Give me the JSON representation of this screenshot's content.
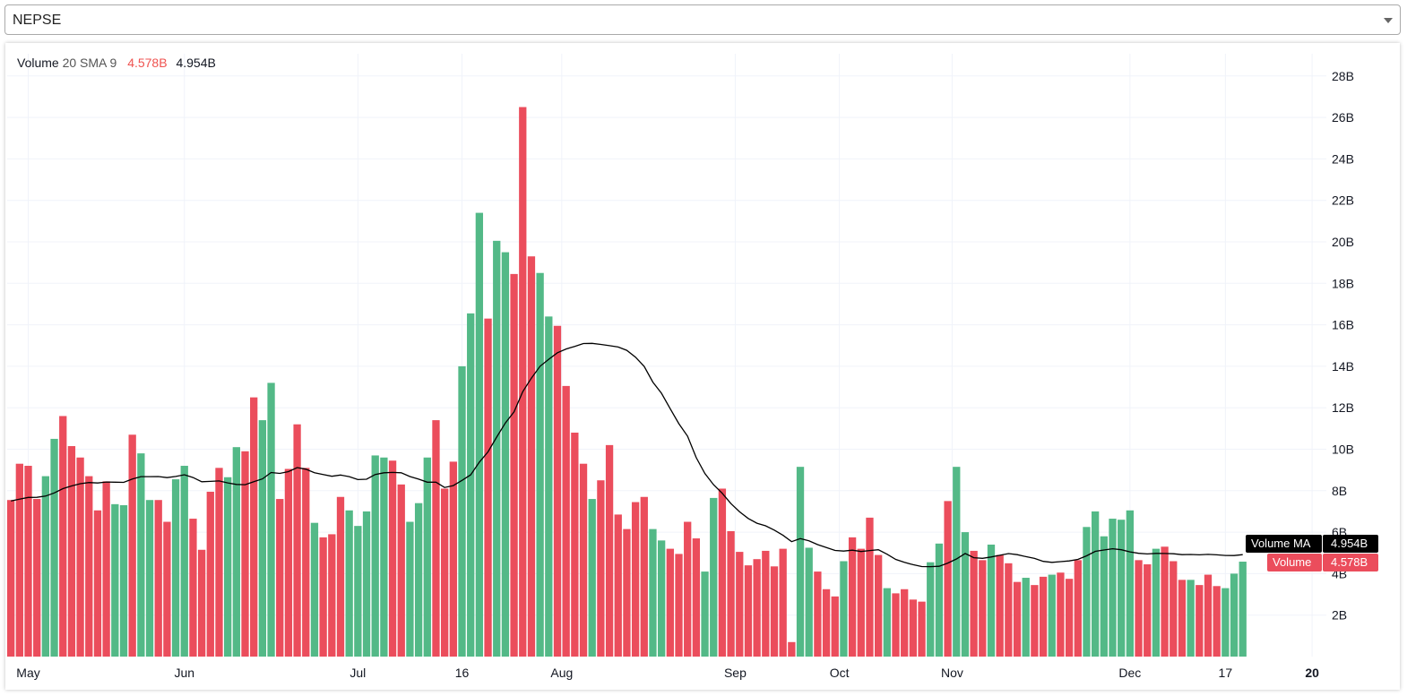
{
  "symbol_select": {
    "value": "NEPSE",
    "icon": "chevron-down-icon"
  },
  "legend": {
    "name": "Volume",
    "params": "20 SMA 9",
    "volume_value": "4.578B",
    "ma_value": "4.954B"
  },
  "price_tags": {
    "ma_label": "Volume MA",
    "ma_value": "4.954B",
    "vol_label": "Volume",
    "vol_value": "4.578B"
  },
  "colors": {
    "up": "#53b987",
    "down": "#eb4d5c",
    "ma": "#000000",
    "grid": "#f0f3fa"
  },
  "chart_data": {
    "type": "bar",
    "unit": "B",
    "ylim": [
      0,
      28
    ],
    "y_ticks": [
      "2B",
      "4B",
      "6B",
      "8B",
      "10B",
      "12B",
      "14B",
      "16B",
      "18B",
      "20B",
      "22B",
      "24B",
      "26B",
      "28B"
    ],
    "y_tick_values": [
      2,
      4,
      6,
      8,
      10,
      12,
      14,
      16,
      18,
      20,
      22,
      24,
      26,
      28
    ],
    "x_ticks": [
      {
        "label": "May",
        "index": 2
      },
      {
        "label": "Jun",
        "index": 20
      },
      {
        "label": "Jul",
        "index": 40
      },
      {
        "label": "16",
        "index": 52
      },
      {
        "label": "Aug",
        "index": 63.5
      },
      {
        "label": "Sep",
        "index": 83.5
      },
      {
        "label": "Oct",
        "index": 95.5
      },
      {
        "label": "Nov",
        "index": 108.5
      },
      {
        "label": "Dec",
        "index": 129
      },
      {
        "label": "17",
        "index": 140
      },
      {
        "label": "20",
        "index": 150
      }
    ],
    "grid": true,
    "ma_period": 20,
    "volumes": [
      7.55,
      9.3,
      9.2,
      7.6,
      8.7,
      10.5,
      11.6,
      10.15,
      9.6,
      8.7,
      7.05,
      8.45,
      7.35,
      7.3,
      10.7,
      9.8,
      7.55,
      7.55,
      6.5,
      8.55,
      9.2,
      6.65,
      5.15,
      7.95,
      9.1,
      8.65,
      10.1,
      9.9,
      12.5,
      11.4,
      13.2,
      7.6,
      9.05,
      11.2,
      9.1,
      6.45,
      5.75,
      5.9,
      7.7,
      7.05,
      6.3,
      7.0,
      9.7,
      9.6,
      9.45,
      8.3,
      6.5,
      7.4,
      9.6,
      11.4,
      8.1,
      9.4,
      14.0,
      16.55,
      21.4,
      16.3,
      20.05,
      19.5,
      18.45,
      26.5,
      19.3,
      18.5,
      16.4,
      15.95,
      13.05,
      10.8,
      9.3,
      7.6,
      8.5,
      10.2,
      6.85,
      6.15,
      7.45,
      7.7,
      6.15,
      5.6,
      5.2,
      4.95,
      6.5,
      5.7,
      4.1,
      7.65,
      8.1,
      6.05,
      5.05,
      4.4,
      4.7,
      5.1,
      4.35,
      5.2,
      0.7,
      9.15,
      5.25,
      4.1,
      3.25,
      2.9,
      4.6,
      5.75,
      5.2,
      6.7,
      4.9,
      3.3,
      3.05,
      3.25,
      2.75,
      2.65,
      4.55,
      5.45,
      7.5,
      9.15,
      6.0,
      5.1,
      4.65,
      5.4,
      4.9,
      4.5,
      3.6,
      3.8,
      3.45,
      3.85,
      3.95,
      4.05,
      3.75,
      4.65,
      6.25,
      7.0,
      5.8,
      6.65,
      6.6,
      7.05,
      4.65,
      4.45,
      5.2,
      5.3,
      4.6,
      3.7,
      3.7,
      3.45,
      3.95,
      3.4,
      3.3,
      4.0,
      4.578
    ],
    "directions": "dddduudddddduuduudduudddduudduudddduddduuuuudduuuddduuuduuddduuddddudddddduudddduuddddddddduuddduddddudddduuduuddudddudduddduuuuuudduddduddduuud",
    "ma_last": 4.954
  }
}
